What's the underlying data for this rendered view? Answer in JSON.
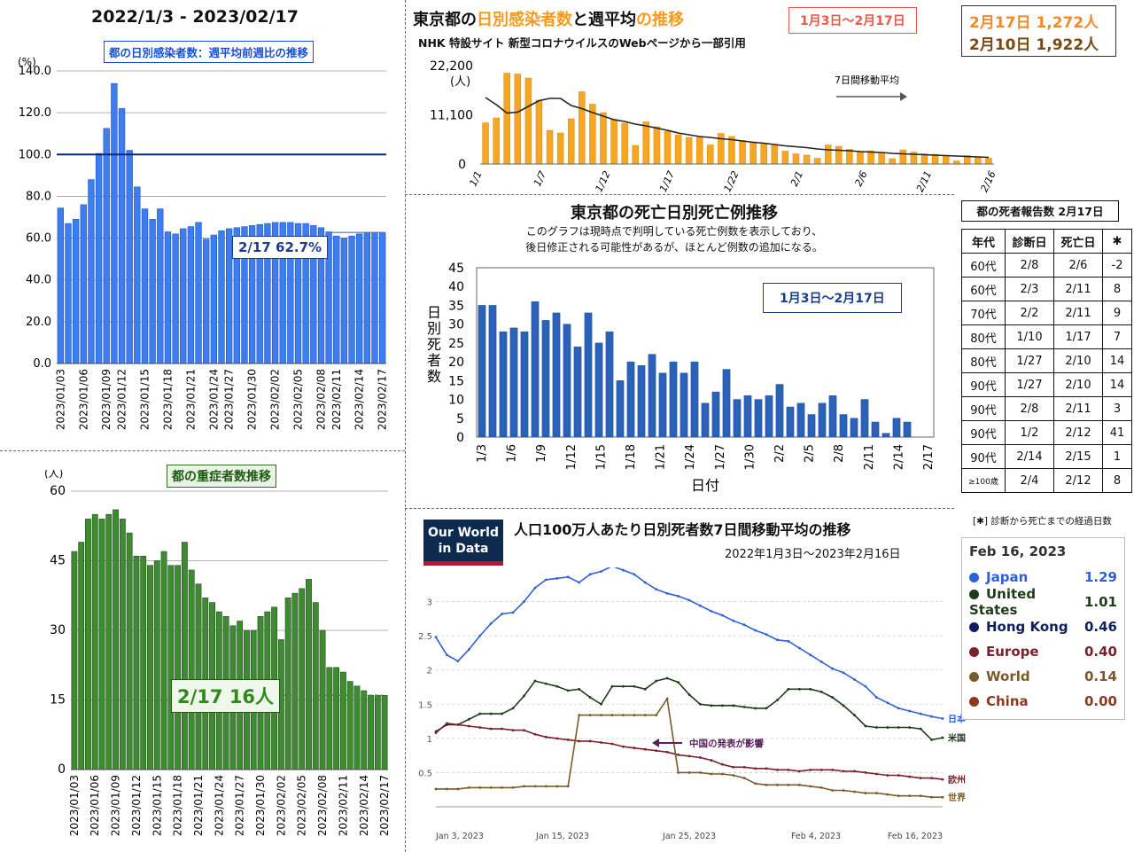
{
  "left_top": {
    "header": "2022/1/3 - 2023/02/17",
    "subtitle": "都の日別感染者数：週平均前週比の推移",
    "callout": "2/17 62.7%"
  },
  "left_bottom": {
    "subtitle": "都の重症者数推移",
    "callout": "2/17 16人"
  },
  "infections": {
    "title_a": "東京都の",
    "title_b": "日別感染者数",
    "title_c": "と週平均",
    "title_d": "の推移",
    "source": "NHK 特設サイト 新型コロナウイルスのWebページから一部引用",
    "period": "1月3日〜2月17日",
    "legend": "7日間移動平均",
    "stat1": "2月17日 1,272人",
    "stat2": "2月10日 1,922人"
  },
  "deaths": {
    "title": "東京都の死亡日別死亡例推移",
    "note1": "このグラフは現時点で判明している死亡例数を表示しており、",
    "note2": "後日修正される可能性があるが、ほとんど例数の追加になる。",
    "period": "1月3日〜2月17日"
  },
  "death_table": {
    "title": "都の死者報告数 2月17日",
    "headers": [
      "年代",
      "診断日",
      "死亡日",
      "✱"
    ],
    "rows": [
      [
        "60代",
        "2/8",
        "2/6",
        "-2"
      ],
      [
        "60代",
        "2/3",
        "2/11",
        "8"
      ],
      [
        "70代",
        "2/2",
        "2/11",
        "9"
      ],
      [
        "80代",
        "1/10",
        "1/17",
        "7"
      ],
      [
        "80代",
        "1/27",
        "2/10",
        "14"
      ],
      [
        "90代",
        "1/27",
        "2/10",
        "14"
      ],
      [
        "90代",
        "2/8",
        "2/11",
        "3"
      ],
      [
        "90代",
        "1/2",
        "2/12",
        "41"
      ],
      [
        "90代",
        "2/14",
        "2/15",
        "1"
      ],
      [
        "≥100歳",
        "2/4",
        "2/12",
        "8"
      ]
    ],
    "footnote": "[✱] 診断から死亡までの経過日数"
  },
  "owid": {
    "logo_line1": "Our World",
    "logo_line2": "in Data",
    "title": "人口100万人あたり日別死者数7日間移動平均の推移",
    "period": "2022年1月3日〜2023年2月16日",
    "annotation": "中国の発表が影響",
    "legend_date": "Feb 16, 2023",
    "legend": [
      {
        "name": "Japan",
        "value": "1.29",
        "color": "#2f5fd6"
      },
      {
        "name": "United States",
        "value": "1.01",
        "color": "#1d3c1a"
      },
      {
        "name": "Hong Kong",
        "value": "0.46",
        "color": "#0d1f5e"
      },
      {
        "name": "Europe",
        "value": "0.40",
        "color": "#7a1f2b"
      },
      {
        "name": "World",
        "value": "0.14",
        "color": "#7a5a2a"
      },
      {
        "name": "China",
        "value": "0.00",
        "color": "#8b3a1e"
      }
    ]
  },
  "chart_data": [
    {
      "type": "bar",
      "title": "都の日別感染者数：週平均前週比の推移",
      "ylabel": "(%)",
      "ylim": [
        0,
        140
      ],
      "yticks": [
        "0.0",
        "20.0",
        "40.0",
        "60.0",
        "80.0",
        "100.0",
        "120.0",
        "140.0"
      ],
      "xtick_labels": [
        "2023/01/03",
        "2023/01/06",
        "2023/01/09",
        "2023/01/12",
        "2023/01/15",
        "2023/01/18",
        "2023/01/21",
        "2023/01/24",
        "2023/01/27",
        "2023/01/30",
        "2023/02/02",
        "2023/02/05",
        "2023/02/08",
        "2023/02/11",
        "2023/02/14",
        "2023/02/17"
      ],
      "reference_line": 100,
      "values": [
        74.4,
        67,
        69,
        76,
        88,
        100.5,
        112.5,
        134,
        122,
        102,
        84.5,
        74,
        69,
        74,
        63,
        62,
        64.5,
        65.5,
        67.5,
        59.5,
        61.5,
        63.5,
        64.5,
        65,
        65.5,
        66,
        66.5,
        67,
        67.5,
        67.5,
        67.5,
        67,
        67,
        66,
        65,
        63,
        61,
        60,
        61,
        62,
        62.7,
        62.7,
        62.7
      ]
    },
    {
      "type": "bar",
      "title": "都の重症者数推移",
      "ylabel": "(人)",
      "ylim": [
        0,
        60
      ],
      "yticks": [
        "0",
        "15",
        "30",
        "45",
        "60"
      ],
      "xtick_labels": [
        "2023/01/03",
        "2023/01/06",
        "2023/01/09",
        "2023/01/12",
        "2023/01/15",
        "2023/01/18",
        "2023/01/21",
        "2023/01/24",
        "2023/01/27",
        "2023/01/30",
        "2023/02/02",
        "2023/02/05",
        "2023/02/08",
        "2023/02/11",
        "2023/02/14",
        "2023/02/17"
      ],
      "values": [
        47,
        49,
        54,
        55,
        54,
        55,
        56,
        54,
        51,
        46,
        46,
        44,
        45,
        47,
        44,
        44,
        49,
        43,
        40,
        37,
        36,
        34,
        33,
        31,
        32,
        30,
        30,
        33,
        34,
        35,
        28,
        37,
        38,
        39,
        41,
        36,
        30,
        22,
        22,
        21,
        19,
        18,
        17,
        16,
        16,
        16
      ]
    },
    {
      "type": "bar",
      "title": "東京都の日別感染者数と週平均の推移",
      "ylabel": "(人)",
      "ylim": [
        0,
        22200
      ],
      "yticks": [
        "0",
        "11,100",
        "22,200"
      ],
      "xtick_labels": [
        "1/1",
        "1/7",
        "1/12",
        "1/17",
        "1/22",
        "2/1",
        "2/6",
        "2/11",
        "2/16"
      ],
      "values": [
        9300,
        10400,
        20500,
        20300,
        19400,
        14400,
        7600,
        7000,
        10200,
        16300,
        13500,
        11600,
        10100,
        9200,
        4200,
        9500,
        8400,
        7400,
        6600,
        6000,
        6000,
        4300,
        6900,
        6200,
        5300,
        5000,
        4700,
        4200,
        2900,
        2300,
        2000,
        1300,
        4300,
        4000,
        3300,
        2800,
        3000,
        2600,
        1200,
        3200,
        2700,
        2300,
        2200,
        1900,
        700,
        1900,
        1500,
        1300
      ],
      "moving_average": [
        15000,
        13400,
        11500,
        11700,
        13000,
        14300,
        14800,
        14800,
        13200,
        12500,
        11600,
        10800,
        10000,
        9600,
        9000,
        8600,
        8100,
        7600,
        7000,
        6600,
        6200,
        6000,
        5700,
        5500,
        5200,
        4900,
        4700,
        4400,
        4100,
        3900,
        3700,
        3400,
        3200,
        3100,
        3000,
        2800,
        2700,
        2600,
        2400,
        2300,
        2200,
        2100,
        2000,
        1900,
        1800,
        1700,
        1600,
        1500
      ]
    },
    {
      "type": "bar",
      "title": "東京都の死亡日別死亡例推移",
      "xlabel": "日付",
      "ylabel": "日別死者数",
      "ylim": [
        0,
        45
      ],
      "yticks": [
        "0",
        "5",
        "10",
        "15",
        "20",
        "25",
        "30",
        "35",
        "40",
        "45"
      ],
      "xtick_labels": [
        "1/3",
        "1/6",
        "1/9",
        "1/12",
        "1/15",
        "1/18",
        "1/21",
        "1/24",
        "1/27",
        "1/30",
        "2/2",
        "2/5",
        "2/8",
        "2/11",
        "2/14",
        "2/17"
      ],
      "values": [
        35,
        35,
        28,
        29,
        28,
        36,
        31,
        33,
        30,
        24,
        33,
        25,
        28,
        15,
        20,
        19,
        22,
        17,
        20,
        17,
        20,
        9,
        12,
        18,
        10,
        11,
        10,
        11,
        14,
        8,
        9,
        6,
        9,
        11,
        6,
        5,
        10,
        4,
        1,
        5,
        4,
        0,
        0
      ]
    },
    {
      "type": "line",
      "title": "人口100万人あたり日別死者数7日間移動平均の推移",
      "ylim": [
        0,
        3.5
      ],
      "yticks": [
        "0.5",
        "1",
        "1.5",
        "2",
        "2.5",
        "3"
      ],
      "xtick_labels": [
        "Jan 3, 2023",
        "Jan 15, 2023",
        "Jan 25, 2023",
        "Feb 4, 2023",
        "Feb 16, 2023"
      ],
      "series": [
        {
          "name": "日本",
          "color": "#2f5fd6",
          "values": [
            2.48,
            2.22,
            2.13,
            2.3,
            2.5,
            2.68,
            2.82,
            2.84,
            3.0,
            3.2,
            3.32,
            3.34,
            3.36,
            3.28,
            3.4,
            3.44,
            3.52,
            3.46,
            3.4,
            3.28,
            3.18,
            3.12,
            3.08,
            3.02,
            2.94,
            2.86,
            2.8,
            2.72,
            2.66,
            2.58,
            2.52,
            2.44,
            2.42,
            2.32,
            2.22,
            2.12,
            2.02,
            1.96,
            1.86,
            1.76,
            1.6,
            1.52,
            1.44,
            1.4,
            1.36,
            1.32,
            1.29
          ]
        },
        {
          "name": "米国",
          "color": "#1d3c1a",
          "values": [
            1.1,
            1.2,
            1.2,
            1.28,
            1.36,
            1.36,
            1.36,
            1.44,
            1.62,
            1.84,
            1.8,
            1.76,
            1.7,
            1.72,
            1.6,
            1.5,
            1.76,
            1.76,
            1.76,
            1.72,
            1.84,
            1.88,
            1.82,
            1.64,
            1.5,
            1.48,
            1.48,
            1.48,
            1.46,
            1.44,
            1.44,
            1.56,
            1.72,
            1.72,
            1.72,
            1.68,
            1.6,
            1.48,
            1.34,
            1.18,
            1.16,
            1.16,
            1.16,
            1.16,
            1.14,
            0.98,
            1.01
          ]
        },
        {
          "name": "欧州",
          "color": "#7a1f2b",
          "values": [
            1.08,
            1.22,
            1.2,
            1.18,
            1.16,
            1.14,
            1.14,
            1.12,
            1.12,
            1.06,
            1.02,
            1.0,
            0.98,
            0.96,
            0.96,
            0.94,
            0.92,
            0.88,
            0.86,
            0.84,
            0.82,
            0.8,
            0.76,
            0.74,
            0.72,
            0.68,
            0.62,
            0.58,
            0.58,
            0.56,
            0.56,
            0.54,
            0.54,
            0.52,
            0.54,
            0.54,
            0.54,
            0.52,
            0.52,
            0.5,
            0.48,
            0.46,
            0.46,
            0.44,
            0.42,
            0.42,
            0.4
          ]
        },
        {
          "name": "世界",
          "color": "#7a5a2a",
          "values": [
            0.26,
            0.26,
            0.26,
            0.28,
            0.28,
            0.28,
            0.28,
            0.28,
            0.3,
            0.3,
            0.3,
            0.3,
            0.3,
            1.34,
            1.34,
            1.34,
            1.34,
            1.34,
            1.34,
            1.34,
            1.34,
            1.58,
            0.5,
            0.5,
            0.5,
            0.48,
            0.48,
            0.46,
            0.42,
            0.34,
            0.32,
            0.32,
            0.32,
            0.32,
            0.3,
            0.28,
            0.24,
            0.24,
            0.22,
            0.2,
            0.2,
            0.18,
            0.16,
            0.16,
            0.16,
            0.14,
            0.14
          ]
        }
      ]
    }
  ]
}
